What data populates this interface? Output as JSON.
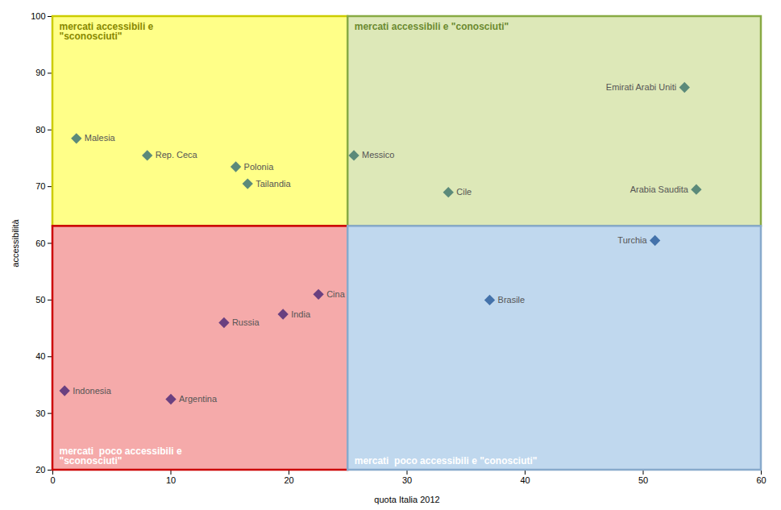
{
  "chart_data": {
    "type": "scatter",
    "xlabel": "quota Italia 2012",
    "ylabel": "accessibilità",
    "xlim": [
      0,
      60
    ],
    "ylim": [
      20,
      100
    ],
    "xticks": [
      0,
      10,
      20,
      30,
      40,
      50,
      60
    ],
    "yticks": [
      20,
      30,
      40,
      50,
      60,
      70,
      80,
      90,
      100
    ],
    "grid": false,
    "label_color": "#555555",
    "quadrants": [
      {
        "label": "mercati accessibili e\n\"sconosciuti\"",
        "xrange": [
          0,
          25
        ],
        "yrange": [
          63,
          100
        ],
        "color": "#FFFF88",
        "edge_color": "#CCCC00",
        "label_color": "#888800"
      },
      {
        "label": "mercati accessibili e \"conosciuti\"",
        "xrange": [
          25,
          60
        ],
        "yrange": [
          63,
          100
        ],
        "color": "#DDE8B8",
        "edge_color": "#88AA44",
        "label_color": "#6B8A30"
      },
      {
        "label": "mercati  poco accessibili e\n\"sconosciuti\"",
        "xrange": [
          0,
          25
        ],
        "yrange": [
          20,
          63
        ],
        "color": "#F5AAAA",
        "edge_color": "#CC0000",
        "label_color": "#ffffff"
      },
      {
        "label": "mercati  poco accessibili e \"conosciuti\"",
        "xrange": [
          25,
          60
        ],
        "yrange": [
          20,
          63
        ],
        "color": "#C0D8EE",
        "edge_color": "#88AACC",
        "label_color": "#ffffff"
      }
    ],
    "series": [
      {
        "color": "#5B8A7A",
        "marker": "diamond",
        "labels": [
          "Malesia",
          "Rep. Ceca",
          "Polonia",
          "Tailandia",
          "Messico",
          "Cile",
          "Arabia Saudita",
          "Emirati Arabi Uniti"
        ],
        "x": [
          2.0,
          8.0,
          15.5,
          16.5,
          25.5,
          33.5,
          54.5,
          53.5
        ],
        "y": [
          78.5,
          75.5,
          73.5,
          70.5,
          75.5,
          69.0,
          69.5,
          87.5
        ]
      },
      {
        "color": "#4472AA",
        "marker": "diamond",
        "labels": [
          "Brasile",
          "Turchia"
        ],
        "x": [
          37.0,
          51.0
        ],
        "y": [
          50.0,
          60.5
        ]
      },
      {
        "color": "#6A4080",
        "marker": "diamond",
        "labels": [
          "Indonesia",
          "Argentina",
          "Russia",
          "India",
          "Cina"
        ],
        "x": [
          1.0,
          10.0,
          14.5,
          19.5,
          22.5
        ],
        "y": [
          34.0,
          32.5,
          46.0,
          47.5,
          51.0
        ]
      }
    ]
  }
}
